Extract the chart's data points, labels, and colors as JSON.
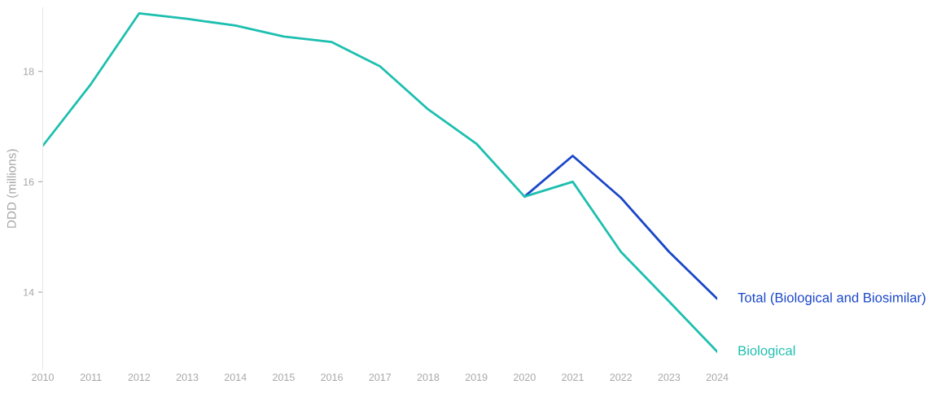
{
  "chart_data": {
    "type": "line",
    "ylabel": "DDD (millions)",
    "x": [
      2010,
      2011,
      2012,
      2013,
      2014,
      2015,
      2016,
      2017,
      2018,
      2019,
      2020,
      2021,
      2022,
      2023,
      2024
    ],
    "series": [
      {
        "name": "Total (Biological and Biosimilar)",
        "color": "#1a47c9",
        "values": [
          null,
          null,
          null,
          null,
          null,
          null,
          null,
          null,
          null,
          null,
          15.73,
          16.47,
          15.71,
          14.73,
          13.88
        ]
      },
      {
        "name": "Biological",
        "color": "#1dbfb0",
        "values": [
          16.65,
          17.77,
          19.05,
          18.95,
          18.83,
          18.63,
          18.53,
          18.09,
          17.31,
          16.69,
          15.73,
          16.0,
          14.73,
          13.83,
          12.92
        ]
      }
    ],
    "xlim": [
      2010,
      2024
    ],
    "xticks": [
      2010,
      2011,
      2012,
      2013,
      2014,
      2015,
      2016,
      2017,
      2018,
      2019,
      2020,
      2021,
      2022,
      2023,
      2024
    ],
    "ylim": [
      12.6,
      19.15
    ],
    "yticks": [
      14,
      16,
      18
    ],
    "grid": false,
    "legend": false,
    "marker": "none",
    "line_style": "solid"
  }
}
